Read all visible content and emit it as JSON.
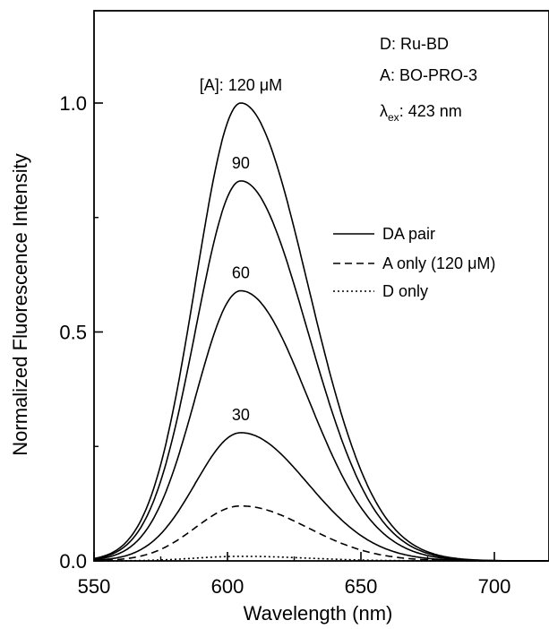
{
  "chart_data": {
    "type": "line",
    "xlabel": "Wavelength (nm)",
    "ylabel": "Normalized Fluorescence Intensity",
    "xlim": [
      550,
      720
    ],
    "ylim": [
      0,
      1.2
    ],
    "x_ticks": [
      550,
      600,
      650,
      700
    ],
    "x_tick_labels": [
      "550",
      "600",
      "650",
      "700"
    ],
    "y_ticks": [
      0.0,
      0.5,
      1.0
    ],
    "y_tick_labels": [
      "0.0",
      "0.5",
      "1.0"
    ],
    "grid": false,
    "legend_position": "right-middle",
    "series": [
      {
        "name": "DA pair",
        "style": "solid",
        "peak_x": 605,
        "peak_y": 1.0,
        "label": "[A]: 120 μM"
      },
      {
        "name": "DA pair",
        "style": "solid",
        "peak_x": 605,
        "peak_y": 0.83,
        "label": "90"
      },
      {
        "name": "DA pair",
        "style": "solid",
        "peak_x": 605,
        "peak_y": 0.59,
        "label": "60"
      },
      {
        "name": "DA pair",
        "style": "solid",
        "peak_x": 605,
        "peak_y": 0.28,
        "label": "30"
      },
      {
        "name": "A only (120 μM)",
        "style": "dashed",
        "peak_x": 605,
        "peak_y": 0.12,
        "label": ""
      },
      {
        "name": "D only",
        "style": "dotted",
        "peak_x": 605,
        "peak_y": 0.01,
        "label": ""
      }
    ],
    "legend": [
      {
        "label": "DA pair",
        "style": "solid"
      },
      {
        "label": "A only (120 μM)",
        "style": "dashed"
      },
      {
        "label": "D only",
        "style": "dotted"
      }
    ],
    "annotations": {
      "donor": "D: Ru-BD",
      "acceptor": "A: BO-PRO-3",
      "lambda_symbol": "λ",
      "lambda_sub": "ex",
      "lambda_value": ": 423 nm"
    }
  }
}
